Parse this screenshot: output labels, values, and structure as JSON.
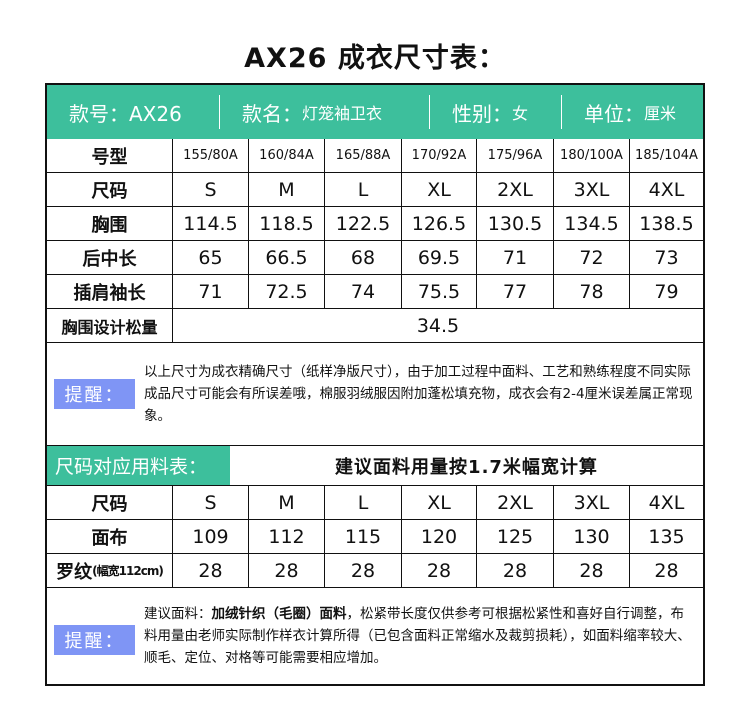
{
  "title": "AX26 成衣尺寸表：",
  "colors": {
    "accent": "#3dbf9c",
    "note_label": "#7f95f5"
  },
  "header": {
    "style_no": "款号：AX26",
    "name_label": "款名：",
    "name_value": "灯笼袖卫衣",
    "gender_label": "性别：",
    "gender_value": "女",
    "unit_label": "单位：",
    "unit_value": "厘米"
  },
  "size_table": {
    "rows": [
      {
        "label": "号型",
        "values": [
          "155/80A",
          "160/84A",
          "165/88A",
          "170/92A",
          "175/96A",
          "180/100A",
          "185/104A"
        ]
      },
      {
        "label": "尺码",
        "values": [
          "S",
          "M",
          "L",
          "XL",
          "2XL",
          "3XL",
          "4XL"
        ]
      },
      {
        "label": "胸围",
        "values": [
          "114.5",
          "118.5",
          "122.5",
          "126.5",
          "130.5",
          "134.5",
          "138.5"
        ]
      },
      {
        "label": "后中长",
        "values": [
          "65",
          "66.5",
          "68",
          "69.5",
          "71",
          "72",
          "73"
        ]
      },
      {
        "label": "插肩袖长",
        "values": [
          "71",
          "72.5",
          "74",
          "75.5",
          "77",
          "78",
          "79"
        ]
      }
    ],
    "ease_label": "胸围设计松量",
    "ease_value": "34.5"
  },
  "note1": {
    "label": "提醒：",
    "text": "以上尺寸为成衣精确尺寸（纸样净版尺寸），由于加工过程中面料、工艺和熟练程度不同实际成品尺寸可能会有所误差哦，棉服羽绒服因附加蓬松填充物，成衣会有2-4厘米误差属正常现象。"
  },
  "fabric_section": {
    "title": "尺码对应用料表：",
    "subtitle": "建议面料用量按1.7米幅宽计算"
  },
  "fabric_table": {
    "rows": [
      {
        "label": "尺码",
        "values": [
          "S",
          "M",
          "L",
          "XL",
          "2XL",
          "3XL",
          "4XL"
        ]
      },
      {
        "label": "面布",
        "values": [
          "109",
          "112",
          "115",
          "120",
          "125",
          "130",
          "135"
        ]
      },
      {
        "label": "罗纹",
        "label_note": "(幅宽112cm)",
        "values": [
          "28",
          "28",
          "28",
          "28",
          "28",
          "28",
          "28"
        ]
      }
    ]
  },
  "note2": {
    "label": "提醒：",
    "prefix": "建议面料：",
    "bold": "加绒针织（毛圈）面料",
    "text": "，松紧带长度仅供参考可根据松紧性和喜好自行调整，布料用量由老师实际制作样衣计算所得（已包含面料正常缩水及裁剪损耗），如面料缩率较大、顺毛、定位、对格等可能需要相应增加。"
  }
}
